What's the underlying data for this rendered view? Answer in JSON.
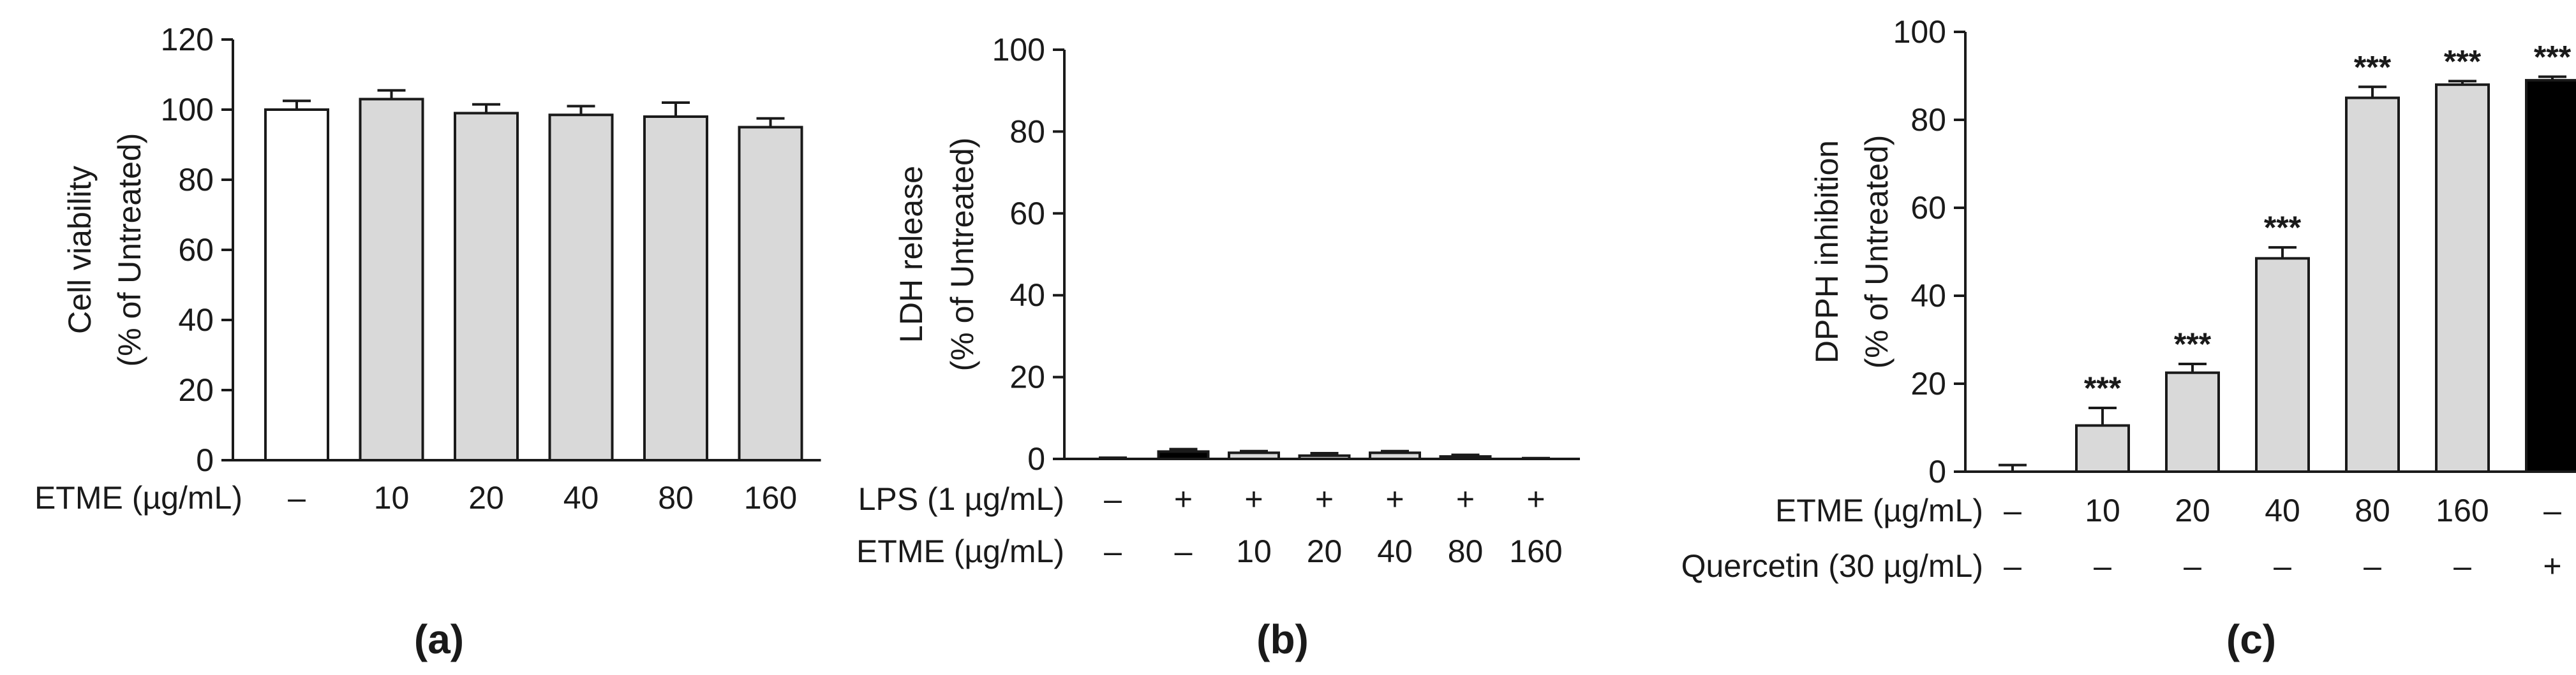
{
  "chart_data": [
    {
      "type": "bar",
      "panel_label": "(a)",
      "ylabel_lines": [
        "Cell viability",
        "(% of Untreated)"
      ],
      "ylim": [
        0,
        120
      ],
      "yticks": [
        0,
        20,
        40,
        60,
        80,
        100,
        120
      ],
      "conditions": [
        {
          "name": "ETME (µg/mL)",
          "values": [
            "–",
            "10",
            "20",
            "40",
            "80",
            "160"
          ]
        }
      ],
      "values": [
        100,
        103,
        99,
        98.5,
        98,
        95
      ],
      "errors": [
        2.5,
        2.5,
        2.5,
        2.5,
        4,
        2.5
      ],
      "significance": [
        "",
        "",
        "",
        "",
        "",
        ""
      ],
      "bar_colors": [
        "#ffffff",
        "#d9d9d9",
        "#d9d9d9",
        "#d9d9d9",
        "#d9d9d9",
        "#d9d9d9"
      ]
    },
    {
      "type": "bar",
      "panel_label": "(b)",
      "ylabel_lines": [
        "LDH release",
        "(% of Untreated)"
      ],
      "ylim": [
        0,
        100
      ],
      "yticks": [
        0,
        20,
        40,
        60,
        80,
        100
      ],
      "conditions": [
        {
          "name": "LPS (1 µg/mL)",
          "values": [
            "–",
            "+",
            "+",
            "+",
            "+",
            "+",
            "+"
          ]
        },
        {
          "name": "ETME (µg/mL)",
          "values": [
            "–",
            "–",
            "10",
            "20",
            "40",
            "80",
            "160"
          ]
        }
      ],
      "values": [
        0,
        1.8,
        1.5,
        0.8,
        1.5,
        0.6,
        0
      ],
      "errors": [
        0.3,
        0.6,
        0.4,
        0.6,
        0.4,
        0.4,
        0.2
      ],
      "significance": [
        "",
        "",
        "",
        "",
        "",
        "",
        ""
      ],
      "bar_colors": [
        "#ffffff",
        "#000000",
        "#d9d9d9",
        "#d9d9d9",
        "#d9d9d9",
        "#d9d9d9",
        "#d9d9d9"
      ]
    },
    {
      "type": "bar",
      "panel_label": "(c)",
      "ylabel_lines": [
        "DPPH inhibition",
        "(% of Untreated)"
      ],
      "ylim": [
        0,
        100
      ],
      "yticks": [
        0,
        20,
        40,
        60,
        80,
        100
      ],
      "conditions": [
        {
          "name": "ETME (µg/mL)",
          "values": [
            "–",
            "10",
            "20",
            "40",
            "80",
            "160",
            "–"
          ]
        },
        {
          "name": "Quercetin (30 µg/mL)",
          "values": [
            "–",
            "–",
            "–",
            "–",
            "–",
            "–",
            "+"
          ]
        }
      ],
      "values": [
        0,
        10.5,
        22.5,
        48.5,
        85,
        88,
        89
      ],
      "errors": [
        1.5,
        4,
        2,
        2.5,
        2.5,
        0.8,
        0.8
      ],
      "significance": [
        "",
        "***",
        "***",
        "***",
        "***",
        "***",
        "***"
      ],
      "bar_colors": [
        "#ffffff",
        "#d9d9d9",
        "#d9d9d9",
        "#d9d9d9",
        "#d9d9d9",
        "#d9d9d9",
        "#000000"
      ]
    }
  ]
}
